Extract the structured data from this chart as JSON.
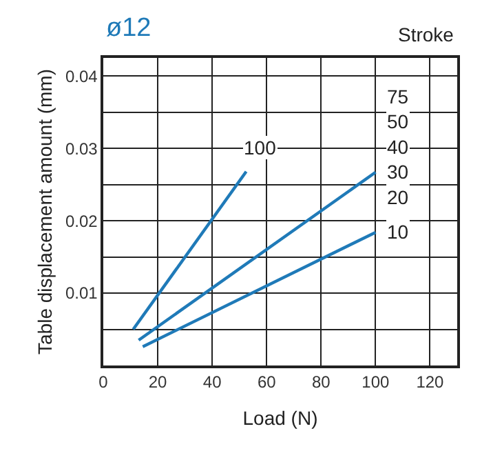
{
  "chart_data": {
    "type": "line",
    "title": "ø12",
    "xlabel": "Load (N)",
    "ylabel": "Table displacement amount (mm)",
    "annotations": [
      "Stroke"
    ],
    "series": [
      {
        "name": "100",
        "color": "#1f7ab8",
        "x": [
          11,
          52.5
        ],
        "values": [
          0.005,
          0.0268
        ]
      },
      {
        "name": "75\n50\n40\n30\n20",
        "color": "#1f7ab8",
        "x": [
          13,
          100
        ],
        "values": [
          0.0035,
          0.0267
        ]
      },
      {
        "name": "10",
        "color": "#1f7ab8",
        "x": [
          14.5,
          100
        ],
        "values": [
          0.0026,
          0.0184
        ]
      }
    ],
    "xlim": [
      0,
      130
    ],
    "xticks": [
      0,
      20,
      40,
      60,
      80,
      100,
      120
    ],
    "ylim": [
      0,
      0.0425
    ],
    "yticks": [
      {
        "value": 0,
        "label": null
      },
      {
        "value": 0.005,
        "label": null
      },
      0.01,
      {
        "value": 0.015,
        "label": null
      },
      0.02,
      {
        "value": 0.025,
        "label": null
      },
      0.03,
      {
        "value": 0.035,
        "label": null
      },
      0.04
    ],
    "grid": true,
    "legend": false,
    "marker": "none",
    "line_style": "solid"
  }
}
